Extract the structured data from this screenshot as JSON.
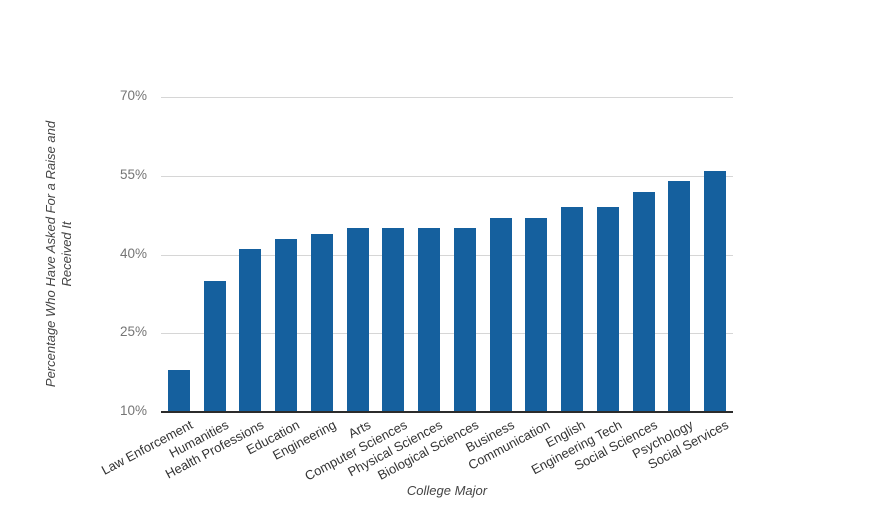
{
  "chart_data": {
    "type": "bar",
    "categories": [
      "Law Enforcement",
      "Humanities",
      "Health Professions",
      "Education",
      "Engineering",
      "Arts",
      "Computer Sciences",
      "Physical Sciences",
      "Biological Sciences",
      "Business",
      "Communication",
      "English",
      "Engineering Tech",
      "Social Sciences",
      "Psychology",
      "Social Services"
    ],
    "values": [
      18,
      35,
      41,
      43,
      44,
      45,
      45,
      45,
      45,
      47,
      47,
      49,
      49,
      52,
      54,
      56
    ],
    "title": "",
    "xlabel": "College Major",
    "ylabel": "Percentage Who Have Asked For a Raise and Received It",
    "ylabel_line1": "Percentage Who Have Asked For a Raise and",
    "ylabel_line2": "Received It",
    "ytick_values": [
      10,
      25,
      40,
      55,
      70
    ],
    "ytick_labels": [
      "10%",
      "25%",
      "40%",
      "55%",
      "70%"
    ],
    "ylim": [
      10,
      70
    ],
    "grid": true,
    "legend": "none",
    "bar_color": "#15609e",
    "gridline_color": "#d6d6d6",
    "baseline_color": "#2b2b2b",
    "ytick_label_color": "#757575",
    "category_label_color": "#333333",
    "axis_title_color": "#454545",
    "background_color": "#ffffff"
  }
}
